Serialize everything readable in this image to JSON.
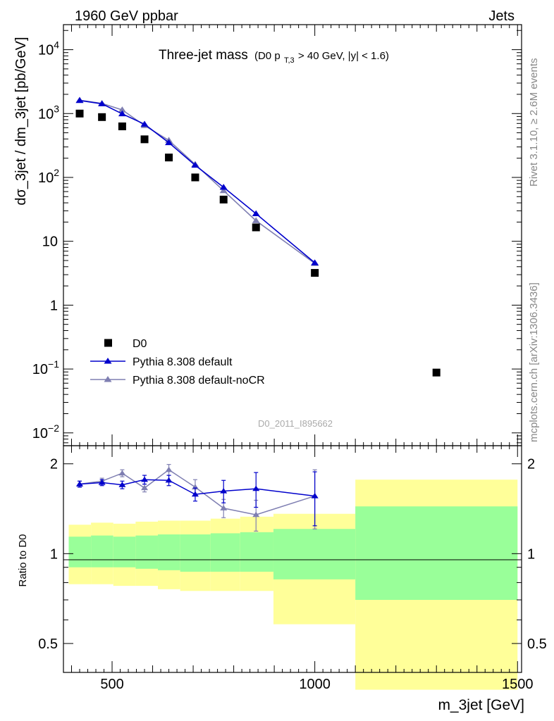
{
  "header": {
    "left": "1960 GeV ppbar",
    "right": "Jets"
  },
  "side_labels": {
    "rivet": "Rivet 3.1.10, ≥ 2.6M events",
    "mcplots": "mcplots.cern.ch [arXiv:1306.3436]"
  },
  "title": {
    "main": "Three-jet mass",
    "paren_open": "(D0 p",
    "subscript": "T,3",
    "paren_rest": " > 40 GeV, |y| < 1.6)"
  },
  "watermark": "D0_2011_I895662",
  "colors": {
    "data": "#000000",
    "default": "#0000cc",
    "nocr": "#7f7fb2",
    "band_outer": "#ffff99",
    "band_inner": "#99ff99"
  },
  "chart_data": {
    "type": "line",
    "xlabel": "m_3jet [GeV]",
    "ylabel_top": "dσ_3jet / dm_3jet [pb/GeV]",
    "ylabel_bottom": "Ratio to D0",
    "xlim": [
      380,
      1510
    ],
    "ylim_top_log10": [
      -2.2,
      1.6
    ],
    "ylim_top_note": "y axis is logarithmic; values below are plain pb/GeV",
    "ylim_top": [
      0.0063,
      40
    ],
    "ylim_ratio_log": true,
    "ylim_ratio": [
      0.4,
      2.3
    ],
    "x_ticks": [
      {
        "value": 500,
        "label": "500"
      },
      {
        "value": 1000,
        "label": "1000"
      },
      {
        "value": 1500,
        "label": "1500"
      }
    ],
    "y_ticks_top": [
      {
        "value": 10000,
        "label": "10",
        "exp": "4"
      },
      {
        "value": 1000,
        "label": "10",
        "exp": "3"
      },
      {
        "value": 100,
        "label": "10",
        "exp": "2"
      },
      {
        "value": 10,
        "label": "10",
        "exp": ""
      },
      {
        "value": 1,
        "label": "1",
        "exp": ""
      },
      {
        "value": 0.1,
        "label": "10",
        "exp": "−1"
      },
      {
        "value": 0.01,
        "label": "10",
        "exp": "−2"
      }
    ],
    "y_ticks_ratio": [
      {
        "value": 0.5,
        "label": "0.5"
      },
      {
        "value": 1,
        "label": "1"
      },
      {
        "value": 2,
        "label": "2"
      }
    ],
    "legend": {
      "placement": "lower-left",
      "entries": [
        {
          "key": "data",
          "label": "D0"
        },
        {
          "key": "default",
          "label": "Pythia 8.308 default"
        },
        {
          "key": "nocr",
          "label": "Pythia 8.308 default-noCR"
        }
      ]
    },
    "data": {
      "name": "D0",
      "points": [
        {
          "x": 420,
          "y": 1000
        },
        {
          "x": 475,
          "y": 880
        },
        {
          "x": 525,
          "y": 630
        },
        {
          "x": 580,
          "y": 395
        },
        {
          "x": 640,
          "y": 205
        },
        {
          "x": 705,
          "y": 100
        },
        {
          "x": 775,
          "y": 45
        },
        {
          "x": 855,
          "y": 16.5
        },
        {
          "x": 1000,
          "y": 3.2
        },
        {
          "x": 1300,
          "y": 0.088
        }
      ]
    },
    "default": {
      "name": "Pythia 8.308 default",
      "points": [
        {
          "x": 420,
          "y": 1600
        },
        {
          "x": 475,
          "y": 1420
        },
        {
          "x": 525,
          "y": 990
        },
        {
          "x": 580,
          "y": 680
        },
        {
          "x": 640,
          "y": 350
        },
        {
          "x": 705,
          "y": 155
        },
        {
          "x": 775,
          "y": 70
        },
        {
          "x": 855,
          "y": 27
        },
        {
          "x": 1000,
          "y": 4.6
        }
      ],
      "ratio": [
        1.71,
        1.73,
        1.7,
        1.77,
        1.76,
        1.58,
        1.62,
        1.65,
        1.56
      ],
      "ratio_err": [
        0.04,
        0.04,
        0.05,
        0.06,
        0.07,
        0.08,
        0.14,
        0.22,
        0.32
      ]
    },
    "nocr": {
      "name": "Pythia 8.308 default-noCR",
      "points": [
        {
          "x": 420,
          "y": 1620
        },
        {
          "x": 475,
          "y": 1440
        },
        {
          "x": 525,
          "y": 1140
        },
        {
          "x": 580,
          "y": 650
        },
        {
          "x": 640,
          "y": 380
        },
        {
          "x": 705,
          "y": 160
        },
        {
          "x": 775,
          "y": 62
        },
        {
          "x": 855,
          "y": 21
        },
        {
          "x": 1000,
          "y": 4.5
        }
      ],
      "ratio": [
        1.71,
        1.75,
        1.86,
        1.66,
        1.91,
        1.67,
        1.42,
        1.35,
        1.56
      ],
      "ratio_err": [
        0.04,
        0.04,
        0.05,
        0.05,
        0.08,
        0.1,
        0.1,
        0.16,
        0.35
      ]
    },
    "bands": [
      {
        "x0": 393,
        "x1": 448,
        "outer": [
          0.79,
          1.25
        ],
        "inner": [
          0.9,
          1.14
        ]
      },
      {
        "x0": 448,
        "x1": 503,
        "outer": [
          0.79,
          1.27
        ],
        "inner": [
          0.9,
          1.15
        ]
      },
      {
        "x0": 503,
        "x1": 558,
        "outer": [
          0.78,
          1.26
        ],
        "inner": [
          0.9,
          1.14
        ]
      },
      {
        "x0": 558,
        "x1": 613,
        "outer": [
          0.78,
          1.28
        ],
        "inner": [
          0.89,
          1.15
        ]
      },
      {
        "x0": 613,
        "x1": 668,
        "outer": [
          0.76,
          1.29
        ],
        "inner": [
          0.88,
          1.16
        ]
      },
      {
        "x0": 668,
        "x1": 743,
        "outer": [
          0.75,
          1.29
        ],
        "inner": [
          0.87,
          1.16
        ]
      },
      {
        "x0": 743,
        "x1": 816,
        "outer": [
          0.75,
          1.31
        ],
        "inner": [
          0.87,
          1.17
        ]
      },
      {
        "x0": 816,
        "x1": 898,
        "outer": [
          0.75,
          1.33
        ],
        "inner": [
          0.87,
          1.18
        ]
      },
      {
        "x0": 898,
        "x1": 1100,
        "outer": [
          0.58,
          1.36
        ],
        "inner": [
          0.82,
          1.21
        ]
      },
      {
        "x0": 1100,
        "x1": 1500,
        "outer": [
          0.35,
          1.77
        ],
        "inner": [
          0.7,
          1.44
        ]
      }
    ]
  }
}
